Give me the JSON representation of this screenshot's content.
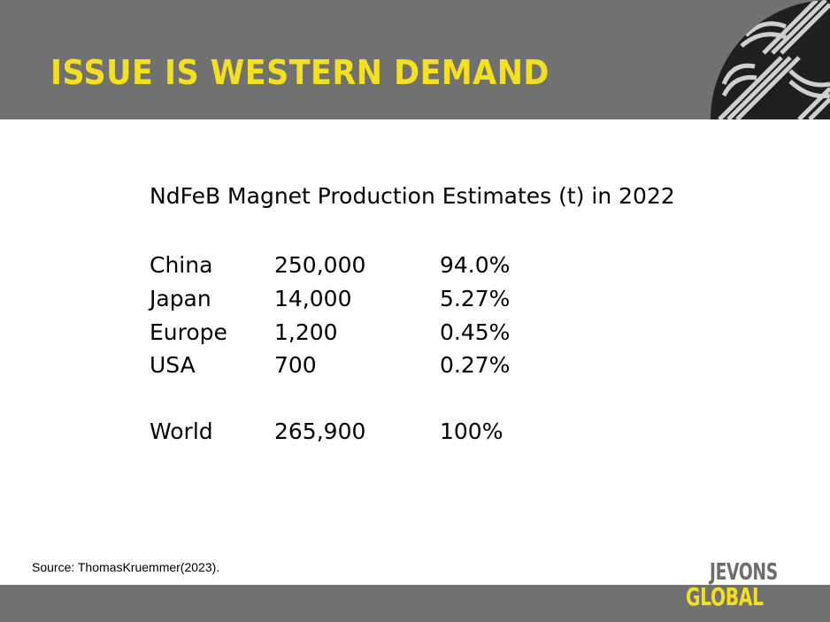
{
  "slide": {
    "title": "ISSUE IS WESTERN DEMAND",
    "heading": "NdFeB Magnet Production Estimates (t) in 2022",
    "rows": [
      {
        "region": "China",
        "tonnes": "250,000",
        "share": "94.0%"
      },
      {
        "region": "Japan",
        "tonnes": "14,000",
        "share": "5.27%"
      },
      {
        "region": "Europe",
        "tonnes": "1,200",
        "share": "0.45%"
      },
      {
        "region": "USA",
        "tonnes": "700",
        "share": "0.27%"
      }
    ],
    "total": {
      "region": "World",
      "tonnes": "265,900",
      "share": "100%"
    },
    "source": "Source: ThomasKruemmer(2023)."
  },
  "logo": {
    "line1": "JEVONS",
    "line2": "GLOBAL"
  },
  "colors": {
    "header_bg": "#717073",
    "accent_yellow": "#f3e11e",
    "logo_gray": "#6d6d6f"
  }
}
